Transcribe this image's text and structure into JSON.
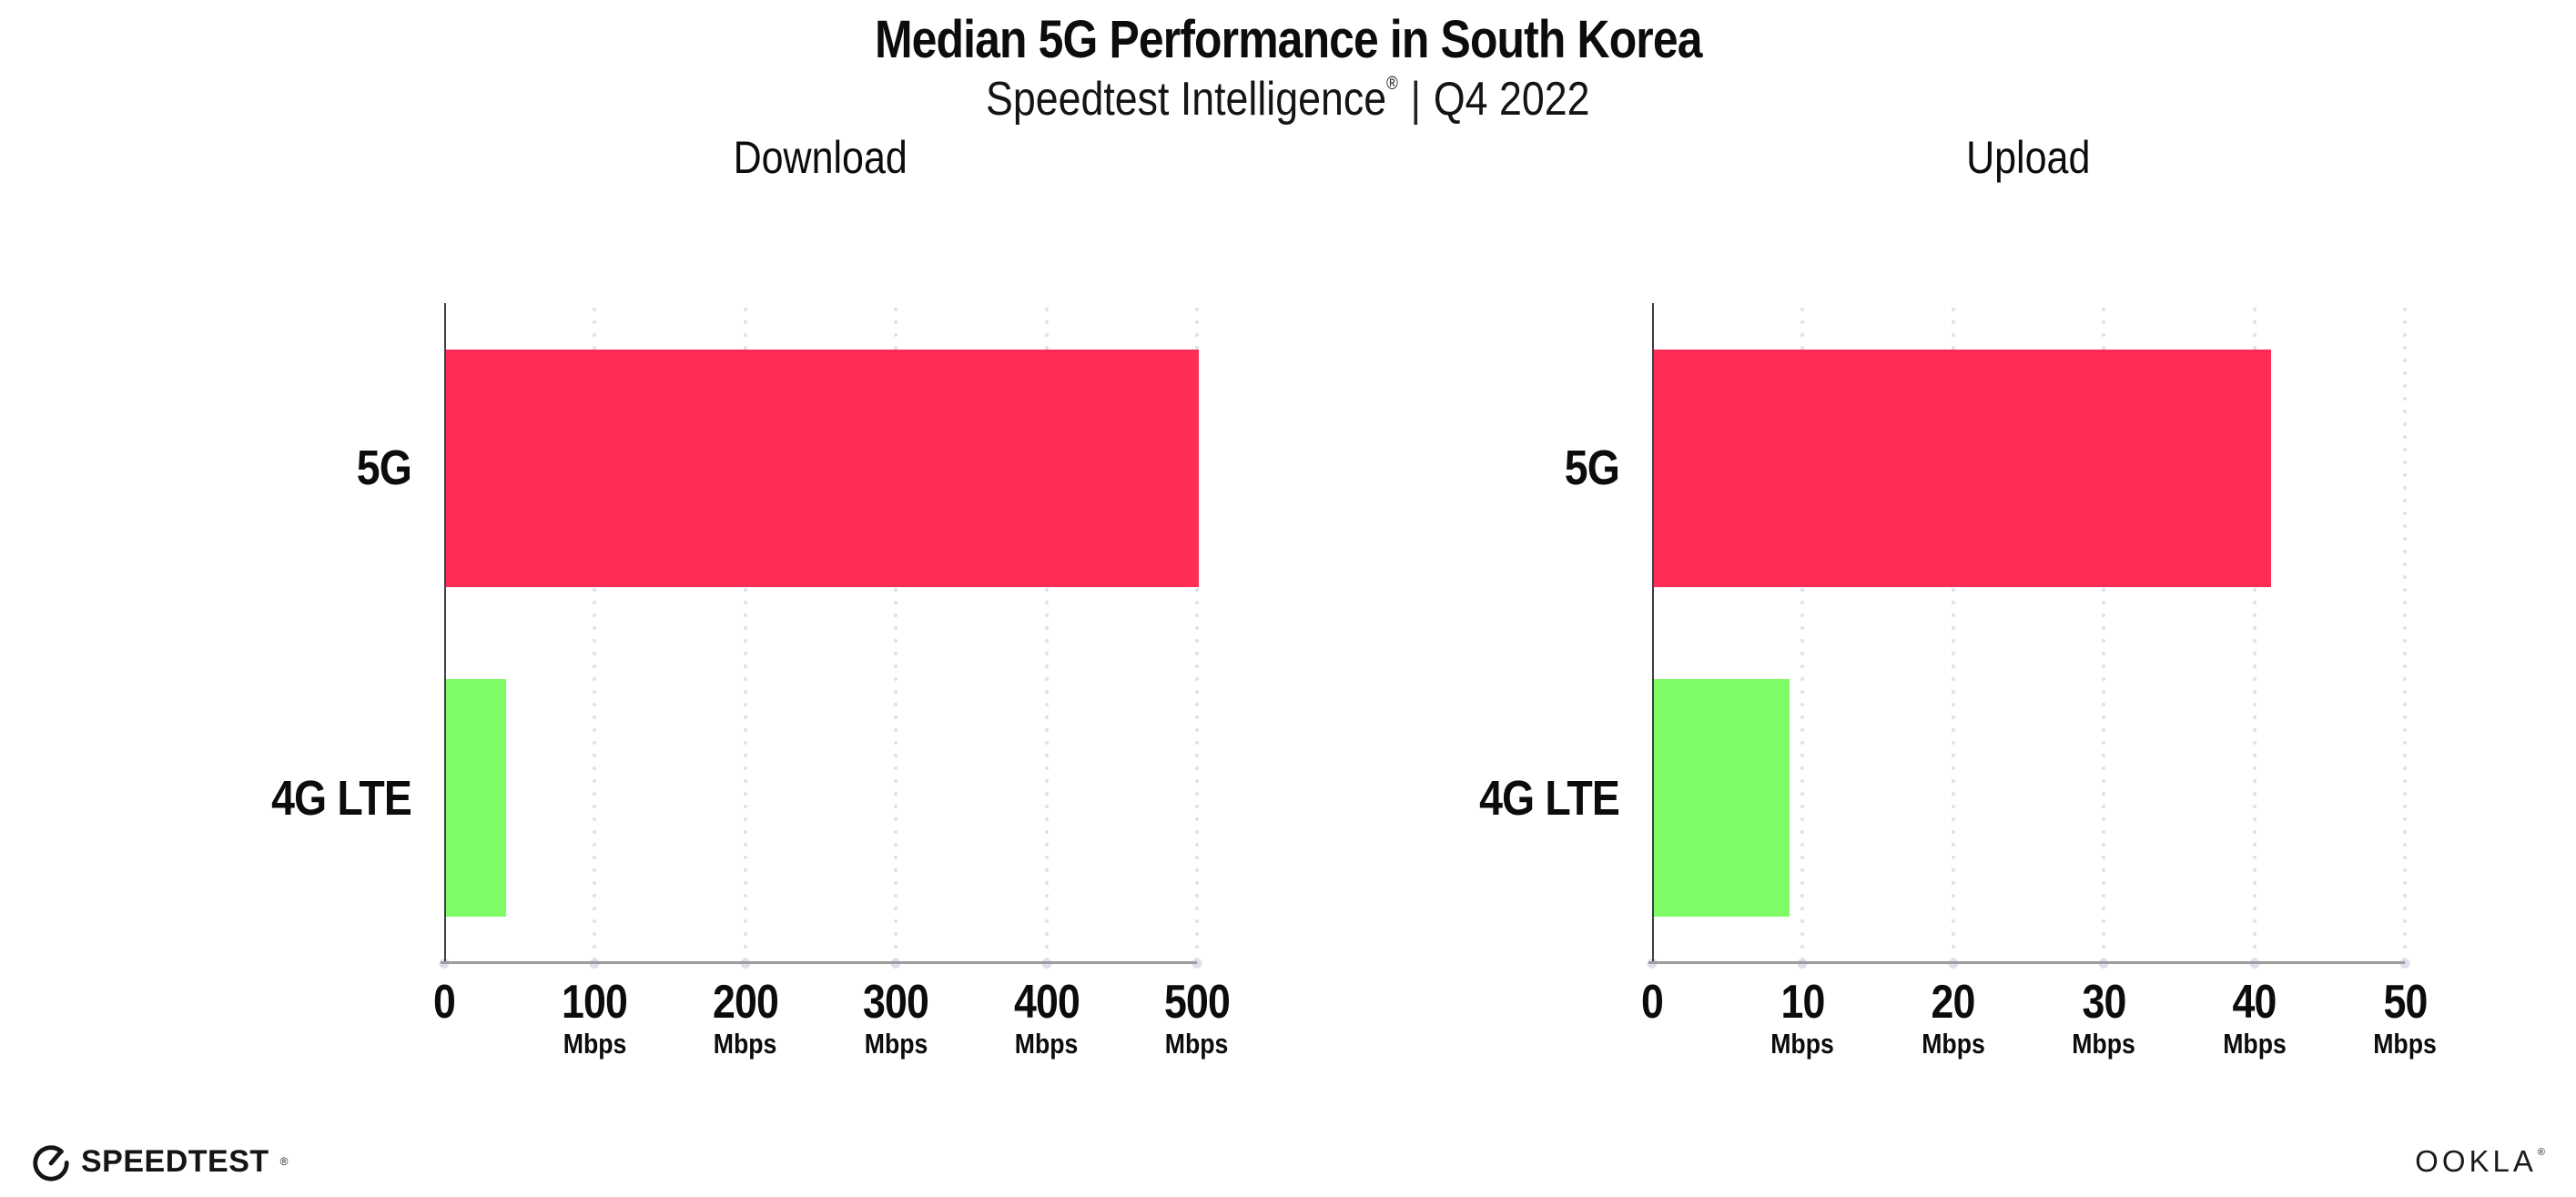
{
  "header": {
    "title": "Median 5G Performance in South Korea",
    "subtitle_brand": "Speedtest Intelligence",
    "subtitle_reg": "®",
    "subtitle_divider": "|",
    "subtitle_period": "Q4 2022"
  },
  "chart_data": [
    {
      "type": "bar",
      "orientation": "horizontal",
      "title": "Download",
      "categories": [
        "5G",
        "4G LTE"
      ],
      "values": [
        500,
        40
      ],
      "unit": "Mbps",
      "xlim": [
        0,
        500
      ],
      "xticks": [
        0,
        100,
        200,
        300,
        400,
        500
      ],
      "series_colors": [
        "#ff2d55",
        "#7ffb65"
      ],
      "grid": "vertical-dotted",
      "legend": "none"
    },
    {
      "type": "bar",
      "orientation": "horizontal",
      "title": "Upload",
      "categories": [
        "5G",
        "4G LTE"
      ],
      "values": [
        41,
        9
      ],
      "unit": "Mbps",
      "xlim": [
        0,
        50
      ],
      "xticks": [
        0,
        10,
        20,
        30,
        40,
        50
      ],
      "series_colors": [
        "#ff2d55",
        "#7ffb65"
      ],
      "grid": "vertical-dotted",
      "legend": "none"
    }
  ],
  "footer": {
    "speedtest_wordmark": "SPEEDTEST",
    "speedtest_reg": "®",
    "ookla_wordmark": "OOKLA",
    "ookla_reg": "®"
  }
}
